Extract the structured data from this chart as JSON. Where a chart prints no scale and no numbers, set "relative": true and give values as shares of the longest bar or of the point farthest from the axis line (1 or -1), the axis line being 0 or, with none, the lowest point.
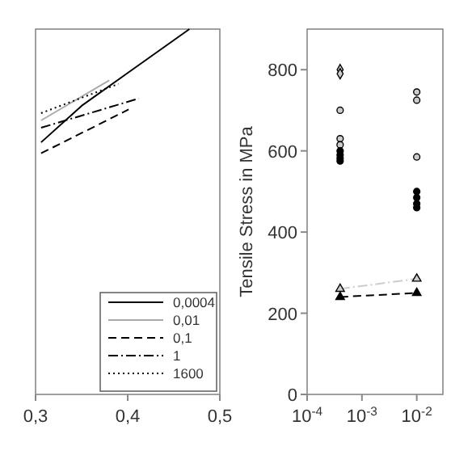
{
  "chart_data": [
    {
      "type": "line",
      "relative": true,
      "xlim": [
        0.3,
        0.5
      ],
      "xticks": [
        {
          "value": 0.3,
          "label": "0,3"
        },
        {
          "value": 0.4,
          "label": "0,4"
        },
        {
          "value": 0.5,
          "label": "0,5"
        }
      ],
      "tick_labels": "x",
      "legend": "bottom right",
      "grid": false,
      "series": [
        {
          "name": "0,0004",
          "color": "#000000",
          "line_style": "solid",
          "x": [
            0.306,
            0.35,
            0.4,
            0.467
          ],
          "values": [
            0.69,
            0.79,
            0.88,
            1.0
          ]
        },
        {
          "name": "0,01",
          "color": "#aaaaaa",
          "line_style": "solid",
          "x": [
            0.306,
            0.38
          ],
          "values": [
            0.75,
            0.86
          ]
        },
        {
          "name": "0,1",
          "color": "#000000",
          "line_style": "dashed",
          "x": [
            0.306,
            0.401
          ],
          "values": [
            0.66,
            0.78
          ]
        },
        {
          "name": "1",
          "color": "#000000",
          "line_style": "dashdot",
          "x": [
            0.306,
            0.412
          ],
          "values": [
            0.73,
            0.81
          ]
        },
        {
          "name": "1600",
          "color": "#000000",
          "line_style": "dotted",
          "x": [
            0.306,
            0.39
          ],
          "values": [
            0.77,
            0.85
          ]
        }
      ]
    },
    {
      "type": "scatter",
      "ylabel": "Tensile Stress in MPa",
      "log": "x",
      "xlim": [
        0.0001,
        0.03
      ],
      "xticks": [
        {
          "value": 0.0001,
          "label": "10$^{-4}$"
        },
        {
          "value": 0.001,
          "label": "10$^{-3}$"
        },
        {
          "value": 0.01,
          "label": "10$^{-2}$"
        }
      ],
      "ylim": [
        0,
        900
      ],
      "yticks": [
        0,
        200,
        400,
        600,
        800
      ],
      "legend": false,
      "grid": false,
      "series": [
        {
          "color": "#cccccc",
          "marker": "diamond",
          "x": [
            0.0004,
            0.0004
          ],
          "values": [
            800,
            790
          ]
        },
        {
          "color": "#cccccc",
          "marker": "circle",
          "x": [
            0.0004,
            0.0004,
            0.0004,
            0.01,
            0.01,
            0.01
          ],
          "values": [
            700,
            630,
            615,
            745,
            725,
            585
          ]
        },
        {
          "color": "#000000",
          "marker": "circle",
          "x": [
            0.0004,
            0.0004,
            0.0004,
            0.0004,
            0.01,
            0.01,
            0.01,
            0.01
          ],
          "values": [
            600,
            590,
            582,
            575,
            500,
            485,
            470,
            460
          ]
        },
        {
          "type": "line",
          "line_style": "dashdot",
          "color": "#cccccc",
          "marker": "triangle",
          "x": [
            0.0004,
            0.01
          ],
          "values": [
            260,
            285
          ]
        },
        {
          "type": "line",
          "line_style": "dashed",
          "color": "#000000",
          "marker": "triangle",
          "x": [
            0.0004,
            0.01
          ],
          "values": [
            240,
            250
          ]
        }
      ]
    }
  ]
}
